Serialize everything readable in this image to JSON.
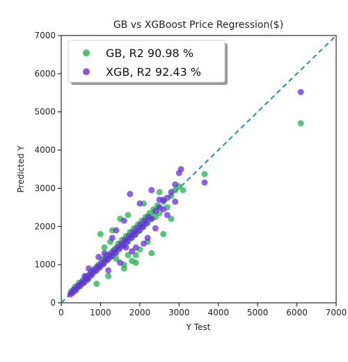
{
  "chart_data": {
    "type": "scatter",
    "title": "GB vs XGBoost Price Regression($)",
    "xlabel": "Y Test",
    "ylabel": "Predicted Y",
    "xlim": [
      0,
      7000
    ],
    "ylim": [
      0,
      7000
    ],
    "xticks": [
      0,
      1000,
      2000,
      3000,
      4000,
      5000,
      6000,
      7000
    ],
    "yticks": [
      0,
      1000,
      2000,
      3000,
      4000,
      5000,
      6000,
      7000
    ],
    "grid": false,
    "legend_position": "top-left",
    "reference_line": {
      "style": "dashed",
      "color": "#1f8ac0",
      "from": [
        0,
        0
      ],
      "to": [
        7000,
        7000
      ]
    },
    "series": [
      {
        "name": "GB, R2 90.98 %",
        "color": "#22b34a",
        "points": [
          [
            250,
            300
          ],
          [
            300,
            280
          ],
          [
            350,
            420
          ],
          [
            400,
            380
          ],
          [
            450,
            520
          ],
          [
            500,
            470
          ],
          [
            550,
            600
          ],
          [
            600,
            550
          ],
          [
            650,
            700
          ],
          [
            700,
            640
          ],
          [
            750,
            820
          ],
          [
            800,
            760
          ],
          [
            850,
            900
          ],
          [
            900,
            850
          ],
          [
            950,
            1000
          ],
          [
            1000,
            950
          ],
          [
            1050,
            1150
          ],
          [
            1100,
            1050
          ],
          [
            1150,
            1250
          ],
          [
            1200,
            1150
          ],
          [
            1250,
            1300
          ],
          [
            1300,
            1220
          ],
          [
            1350,
            1400
          ],
          [
            1400,
            1300
          ],
          [
            1450,
            1550
          ],
          [
            1500,
            1450
          ],
          [
            1550,
            1650
          ],
          [
            1600,
            1500
          ],
          [
            1650,
            1750
          ],
          [
            1700,
            1600
          ],
          [
            1750,
            1850
          ],
          [
            1800,
            1700
          ],
          [
            1850,
            1950
          ],
          [
            1900,
            1800
          ],
          [
            1950,
            2050
          ],
          [
            2000,
            1900
          ],
          [
            2050,
            2150
          ],
          [
            2100,
            2000
          ],
          [
            2150,
            2250
          ],
          [
            2200,
            2100
          ],
          [
            2250,
            2350
          ],
          [
            2300,
            2200
          ],
          [
            2350,
            2450
          ],
          [
            2400,
            2250
          ],
          [
            2450,
            2550
          ],
          [
            2500,
            2350
          ],
          [
            2600,
            2650
          ],
          [
            2700,
            2500
          ],
          [
            2800,
            2800
          ],
          [
            2900,
            2950
          ],
          [
            3000,
            3050
          ],
          [
            3100,
            2950
          ],
          [
            3650,
            3370
          ],
          [
            6100,
            4700
          ],
          [
            1000,
            1800
          ],
          [
            1300,
            1900
          ],
          [
            1500,
            2200
          ],
          [
            1700,
            2300
          ],
          [
            2100,
            2600
          ],
          [
            2500,
            2900
          ],
          [
            1900,
            1050
          ],
          [
            1800,
            1100
          ],
          [
            2300,
            1300
          ],
          [
            2000,
            1400
          ],
          [
            1200,
            700
          ],
          [
            900,
            500
          ],
          [
            1600,
            900
          ],
          [
            2600,
            1800
          ],
          [
            2800,
            2200
          ],
          [
            2200,
            1600
          ],
          [
            1900,
            1250
          ],
          [
            1600,
            1000
          ],
          [
            1100,
            1450
          ],
          [
            1400,
            1150
          ],
          [
            1700,
            1250
          ],
          [
            1250,
            1600
          ]
        ]
      },
      {
        "name": "XGB, R2 92.43 %",
        "color": "#6a2be0",
        "points": [
          [
            230,
            220
          ],
          [
            280,
            260
          ],
          [
            320,
            350
          ],
          [
            370,
            330
          ],
          [
            420,
            450
          ],
          [
            470,
            430
          ],
          [
            520,
            540
          ],
          [
            570,
            520
          ],
          [
            620,
            640
          ],
          [
            670,
            610
          ],
          [
            720,
            740
          ],
          [
            770,
            720
          ],
          [
            820,
            850
          ],
          [
            870,
            830
          ],
          [
            920,
            950
          ],
          [
            970,
            920
          ],
          [
            1020,
            1050
          ],
          [
            1070,
            1010
          ],
          [
            1120,
            1150
          ],
          [
            1170,
            1120
          ],
          [
            1220,
            1250
          ],
          [
            1270,
            1210
          ],
          [
            1320,
            1350
          ],
          [
            1370,
            1310
          ],
          [
            1420,
            1450
          ],
          [
            1470,
            1400
          ],
          [
            1520,
            1550
          ],
          [
            1570,
            1500
          ],
          [
            1620,
            1650
          ],
          [
            1670,
            1600
          ],
          [
            1720,
            1750
          ],
          [
            1770,
            1700
          ],
          [
            1820,
            1850
          ],
          [
            1870,
            1780
          ],
          [
            1920,
            1950
          ],
          [
            1970,
            1880
          ],
          [
            2020,
            2050
          ],
          [
            2070,
            1980
          ],
          [
            2120,
            2150
          ],
          [
            2170,
            2080
          ],
          [
            2220,
            2250
          ],
          [
            2300,
            2200
          ],
          [
            2400,
            2400
          ],
          [
            2500,
            2500
          ],
          [
            2600,
            2700
          ],
          [
            2700,
            2750
          ],
          [
            2800,
            2900
          ],
          [
            2900,
            3100
          ],
          [
            3000,
            3400
          ],
          [
            3050,
            3500
          ],
          [
            3650,
            3150
          ],
          [
            6100,
            5520
          ],
          [
            1750,
            2850
          ],
          [
            2300,
            2950
          ],
          [
            2500,
            2700
          ],
          [
            2000,
            2600
          ],
          [
            1400,
            1900
          ],
          [
            1600,
            2150
          ],
          [
            1300,
            1700
          ],
          [
            2600,
            2450
          ],
          [
            2200,
            1700
          ],
          [
            1900,
            1450
          ],
          [
            1500,
            1050
          ],
          [
            1200,
            850
          ],
          [
            2400,
            1950
          ],
          [
            1800,
            1350
          ],
          [
            700,
            900
          ],
          [
            600,
            700
          ],
          [
            950,
            1200
          ],
          [
            1100,
            1300
          ],
          [
            1650,
            1450
          ],
          [
            2100,
            1550
          ],
          [
            2700,
            2300
          ],
          [
            2900,
            2650
          ]
        ]
      }
    ]
  }
}
